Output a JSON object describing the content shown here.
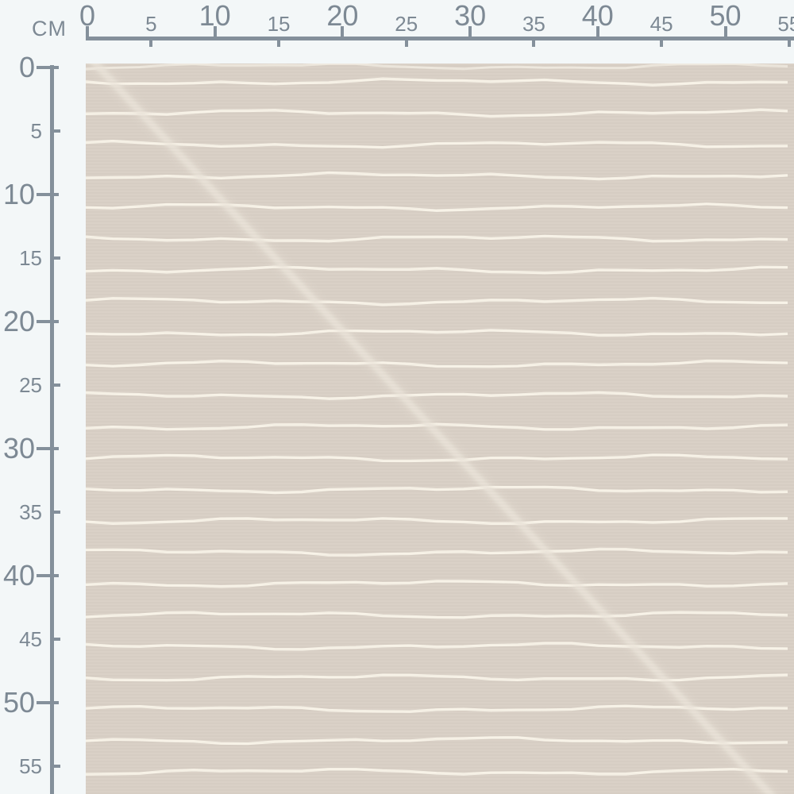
{
  "view": {
    "unit_label": "CM"
  },
  "ruler": {
    "horizontal_labels": [
      "0",
      "5",
      "10",
      "15",
      "20",
      "25",
      "30",
      "35",
      "40",
      "45",
      "50",
      "55"
    ],
    "vertical_labels": [
      "0",
      "5",
      "10",
      "15",
      "20",
      "25",
      "30",
      "35",
      "40",
      "45",
      "50",
      "55"
    ],
    "tick_interval_cm": 5,
    "major_interval_cm": 10
  },
  "colors": {
    "background": "#f3f7f8",
    "ruler_line": "#84909b",
    "ruler_text": "#7d8994",
    "fabric_base": "#d9d0c6",
    "fabric_stripe": "#f9f5e9",
    "fold_line": "#ece5da"
  },
  "fabric": {
    "pattern": "beige fabric with thin hand-drawn cream horizontal stripes",
    "stripe_spacing_cm": 2.5,
    "stripe_count": 23,
    "fold": "faint diagonal crease from top-left to bottom-right"
  }
}
